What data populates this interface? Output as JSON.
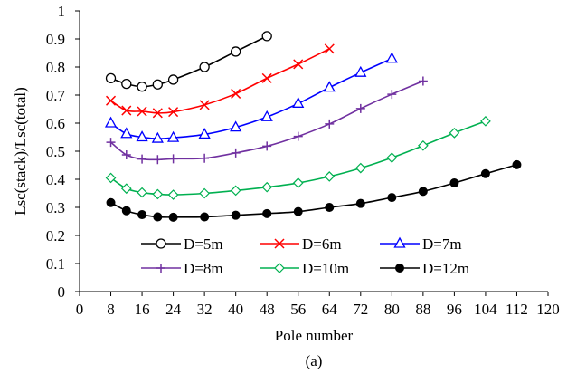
{
  "chart_data": {
    "type": "line",
    "title": "",
    "caption": "(a)",
    "xlabel": "Pole number",
    "ylabel": "Lsc(stack)/Lsc(total)",
    "xlim": [
      0,
      120
    ],
    "ylim": [
      0,
      1
    ],
    "xticks": [
      0,
      8,
      16,
      24,
      32,
      40,
      48,
      56,
      64,
      72,
      80,
      88,
      96,
      104,
      112,
      120
    ],
    "yticks": [
      0,
      0.1,
      0.2,
      0.3,
      0.4,
      0.5,
      0.6,
      0.7,
      0.8,
      0.9,
      1
    ],
    "grid": false,
    "legend_position": "bottom-center, inside plot, 3 columns",
    "series": [
      {
        "name": "D=5m",
        "color": "#000000",
        "marker": "circle-open",
        "x": [
          8,
          12,
          16,
          20,
          24,
          32,
          40,
          48
        ],
        "y": [
          0.76,
          0.74,
          0.73,
          0.738,
          0.755,
          0.8,
          0.855,
          0.91
        ]
      },
      {
        "name": "D=6m",
        "color": "#ff0000",
        "marker": "x",
        "x": [
          8,
          12,
          16,
          20,
          24,
          32,
          40,
          48,
          56,
          64
        ],
        "y": [
          0.68,
          0.645,
          0.642,
          0.636,
          0.64,
          0.665,
          0.705,
          0.76,
          0.81,
          0.865
        ]
      },
      {
        "name": "D=7m",
        "color": "#0000ff",
        "marker": "triangle-open",
        "x": [
          8,
          12,
          16,
          20,
          24,
          32,
          40,
          48,
          56,
          64,
          72,
          80
        ],
        "y": [
          0.6,
          0.562,
          0.55,
          0.545,
          0.548,
          0.56,
          0.585,
          0.622,
          0.67,
          0.727,
          0.78,
          0.83
        ]
      },
      {
        "name": "D=8m",
        "color": "#7030a0",
        "marker": "plus",
        "x": [
          8,
          12,
          16,
          20,
          24,
          32,
          40,
          48,
          56,
          64,
          72,
          80,
          88
        ],
        "y": [
          0.532,
          0.487,
          0.472,
          0.47,
          0.473,
          0.475,
          0.494,
          0.518,
          0.553,
          0.597,
          0.652,
          0.703,
          0.75
        ]
      },
      {
        "name": "D=10m",
        "color": "#00b050",
        "marker": "diamond-open",
        "x": [
          8,
          12,
          16,
          20,
          24,
          32,
          40,
          48,
          56,
          64,
          72,
          80,
          88,
          96,
          104
        ],
        "y": [
          0.405,
          0.367,
          0.353,
          0.347,
          0.345,
          0.35,
          0.36,
          0.372,
          0.387,
          0.41,
          0.44,
          0.477,
          0.52,
          0.565,
          0.607
        ]
      },
      {
        "name": "D=12m",
        "color": "#000000",
        "marker": "circle-filled",
        "x": [
          8,
          12,
          16,
          20,
          24,
          32,
          40,
          48,
          56,
          64,
          72,
          80,
          88,
          96,
          104,
          112
        ],
        "y": [
          0.317,
          0.288,
          0.274,
          0.266,
          0.265,
          0.266,
          0.272,
          0.278,
          0.285,
          0.3,
          0.314,
          0.335,
          0.357,
          0.387,
          0.42,
          0.452
        ]
      }
    ]
  }
}
